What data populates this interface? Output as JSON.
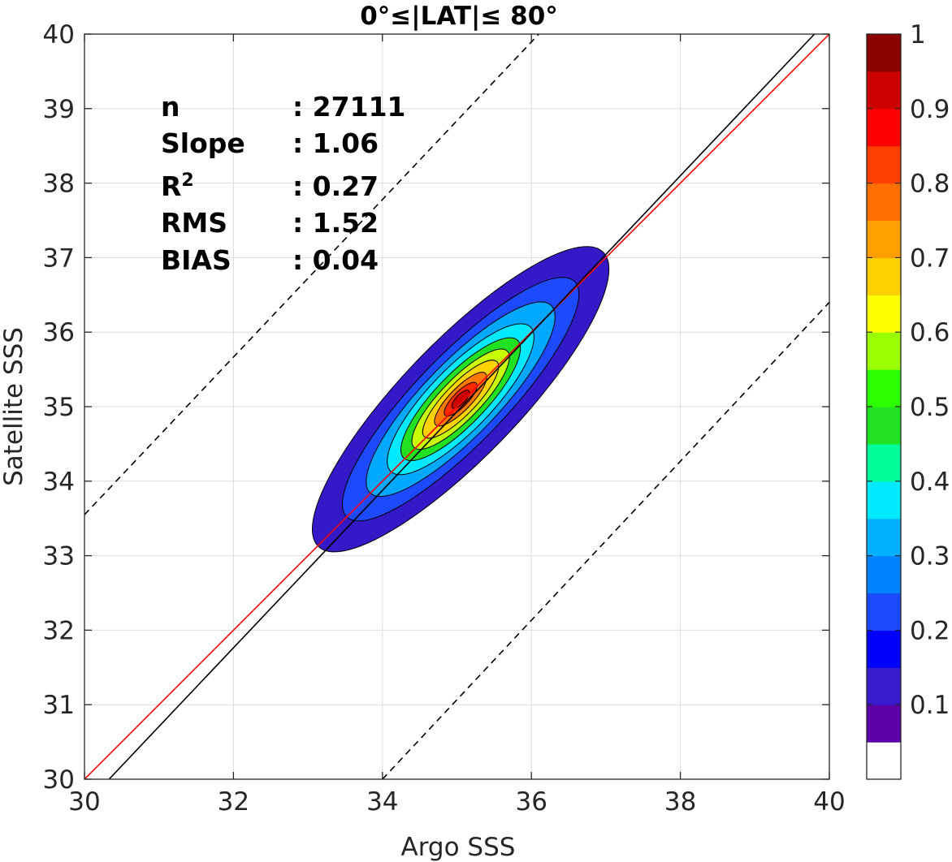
{
  "chart_data": {
    "type": "contour",
    "title_parts": [
      "0°",
      "≤",
      "|LAT|",
      "≤",
      " 80°"
    ],
    "xlabel": "Argo SSS",
    "ylabel": "Satellite SSS",
    "xlim": [
      30,
      40
    ],
    "ylim": [
      30,
      40
    ],
    "xticks": [
      30,
      32,
      34,
      36,
      38,
      40
    ],
    "yticks": [
      30,
      31,
      32,
      33,
      34,
      35,
      36,
      37,
      38,
      39,
      40
    ],
    "grid": true,
    "stats": [
      {
        "label": "n",
        "value": ": 27111"
      },
      {
        "label": "Slope",
        "value": ": 1.06"
      },
      {
        "label": "R",
        "sup": "2",
        "value": ": 0.27"
      },
      {
        "label": "RMS",
        "value": ": 1.52"
      },
      {
        "label": "BIAS",
        "value": ": 0.04"
      }
    ],
    "lines": [
      {
        "name": "one-to-one",
        "color": "#ff0000",
        "dash": false,
        "points": [
          [
            30,
            30
          ],
          [
            40,
            40
          ]
        ]
      },
      {
        "name": "regression-fit",
        "color": "#000000",
        "dash": false,
        "points": [
          [
            30.33,
            30
          ],
          [
            39.8,
            40
          ]
        ]
      },
      {
        "name": "upper-bound",
        "color": "#000000",
        "dash": true,
        "points": [
          [
            30,
            33.55
          ],
          [
            36.1,
            40
          ]
        ]
      },
      {
        "name": "lower-bound",
        "color": "#000000",
        "dash": true,
        "points": [
          [
            34,
            30
          ],
          [
            40,
            36.4
          ]
        ]
      }
    ],
    "density": {
      "center": [
        35.05,
        35.1
      ],
      "principal_axis_deg": 46,
      "levels": [
        {
          "level": 0.05,
          "color": "#3419c8",
          "semi_major": 2.75,
          "semi_minor": 0.78
        },
        {
          "level": 0.15,
          "color": "#1e4aff",
          "semi_major": 2.2,
          "semi_minor": 0.6
        },
        {
          "level": 0.25,
          "color": "#00a8ff",
          "semi_major": 1.75,
          "semi_minor": 0.5
        },
        {
          "level": 0.35,
          "color": "#00eaff",
          "semi_major": 1.35,
          "semi_minor": 0.42
        },
        {
          "level": 0.45,
          "color": "#22e022",
          "semi_major": 1.1,
          "semi_minor": 0.34
        },
        {
          "level": 0.55,
          "color": "#c8ff00",
          "semi_major": 0.9,
          "semi_minor": 0.27
        },
        {
          "level": 0.65,
          "color": "#ffd200",
          "semi_major": 0.7,
          "semi_minor": 0.21
        },
        {
          "level": 0.75,
          "color": "#ff7a00",
          "semi_major": 0.48,
          "semi_minor": 0.15
        },
        {
          "level": 0.85,
          "color": "#ff2a00",
          "semi_major": 0.3,
          "semi_minor": 0.1
        },
        {
          "level": 0.95,
          "color": "#cc0000",
          "semi_major": 0.16,
          "semi_minor": 0.06
        }
      ]
    },
    "colorbar": {
      "min": 0,
      "max": 1,
      "tick_labels": [
        "0.1",
        "0.2",
        "0.3",
        "0.4",
        "0.5",
        "0.6",
        "0.7",
        "0.8",
        "0.9",
        "1"
      ],
      "tick_values": [
        0.1,
        0.2,
        0.3,
        0.4,
        0.5,
        0.6,
        0.7,
        0.8,
        0.9,
        1.0
      ],
      "colors": [
        "#ffffff",
        "#5c00a8",
        "#3a1acd",
        "#0000ff",
        "#1e4aff",
        "#0082ff",
        "#00b0ff",
        "#00eaff",
        "#00ff9a",
        "#22e022",
        "#2bff00",
        "#9aff00",
        "#ffff00",
        "#ffd000",
        "#ffa000",
        "#ff7000",
        "#ff4000",
        "#ff0000",
        "#cc0000",
        "#8b0000"
      ]
    }
  }
}
